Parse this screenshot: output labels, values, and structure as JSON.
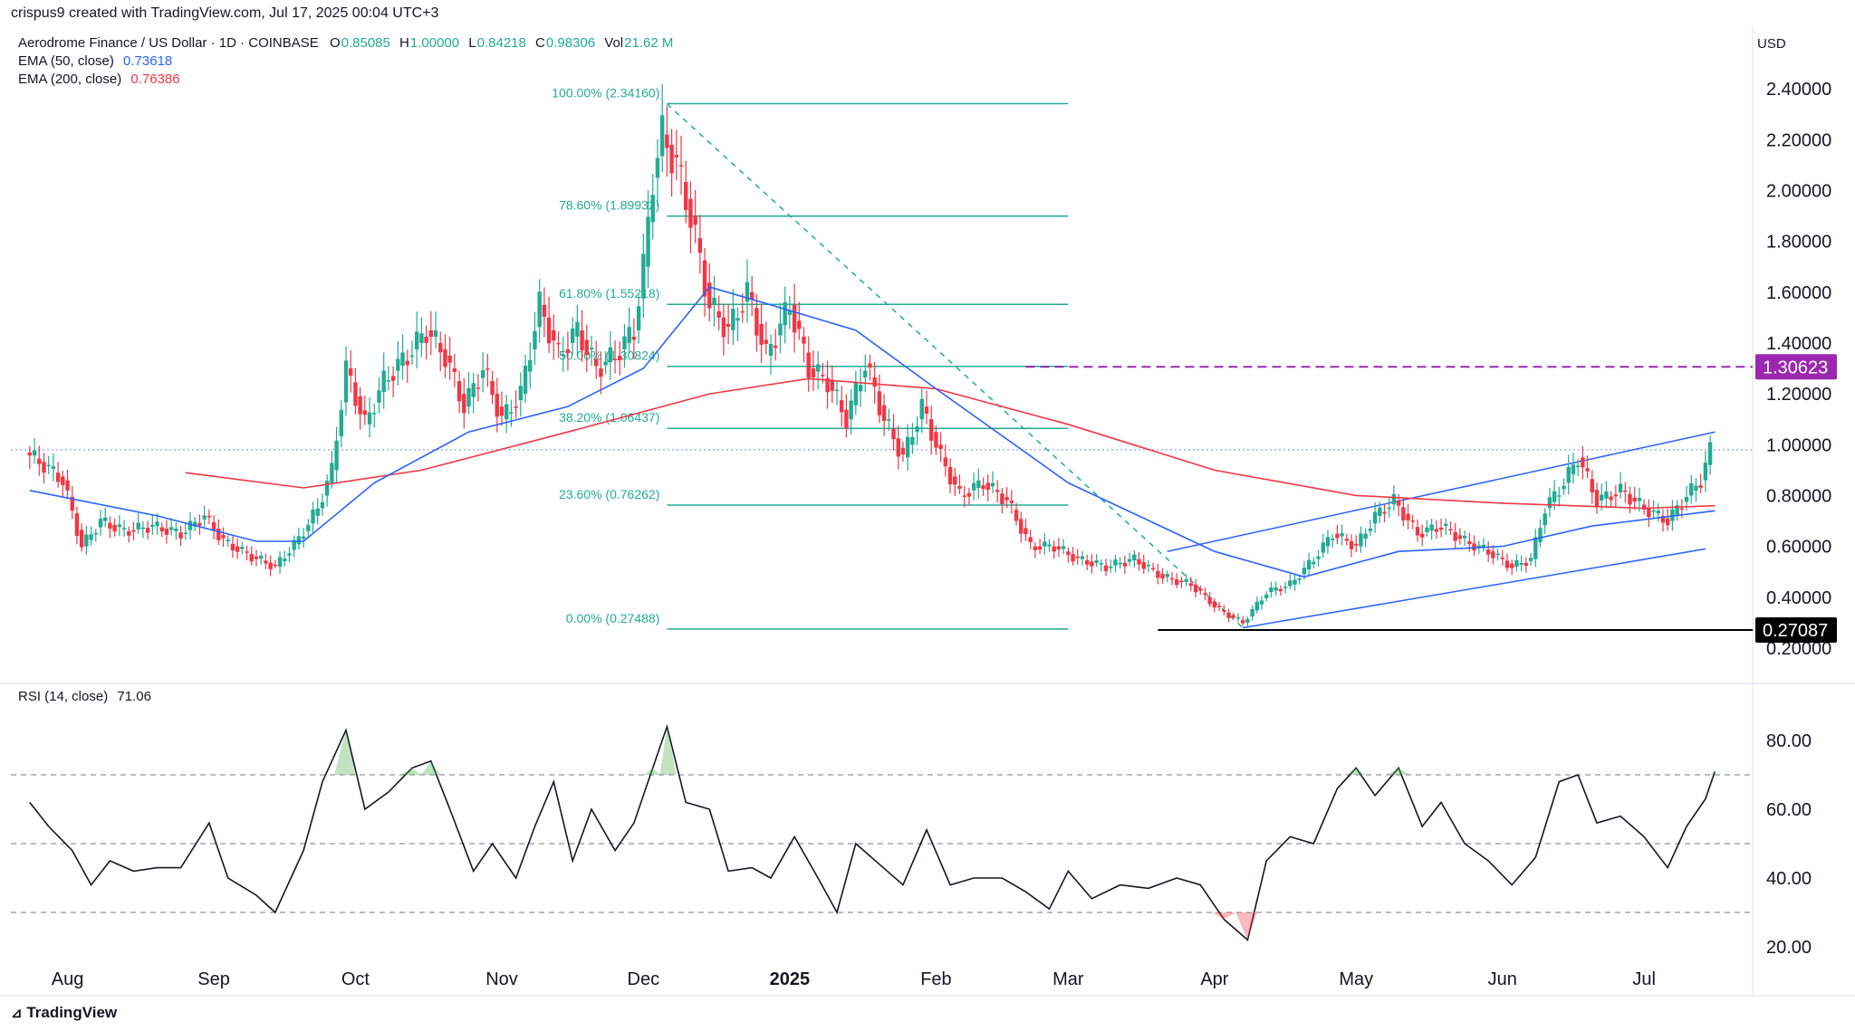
{
  "header": {
    "credit": "crispus9 created with TradingView.com, Jul 17, 2025 00:04 UTC+3",
    "currency": "USD",
    "footer_logo": "TradingView"
  },
  "legend": {
    "symbol": "Aerodrome Finance / US Dollar · 1D · COINBASE",
    "ohlc": [
      {
        "k": "O",
        "v": "0.85085"
      },
      {
        "k": "H",
        "v": "1.00000"
      },
      {
        "k": "L",
        "v": "0.84218"
      },
      {
        "k": "C",
        "v": "0.98306"
      },
      {
        "k": "Vol",
        "v": "21.62 M"
      }
    ],
    "ema50_label": "EMA (50, close)",
    "ema50_value": "0.73618",
    "ema200_label": "EMA (200, close)",
    "ema200_value": "0.76386",
    "rsi_label": "RSI (14, close)",
    "rsi_value": "71.06"
  },
  "colors": {
    "up": "#22ab94",
    "down": "#f23645",
    "ema50": "#2962ff",
    "ema200": "#f23645",
    "fib": "#22ab94",
    "channel": "#2962ff",
    "level_purple": "#9c27b0",
    "rsi_line": "#131722"
  },
  "chart_data": [
    {
      "type": "candlestick",
      "title": "Aerodrome Finance / US Dollar · 1D · COINBASE",
      "ylim": [
        0.15,
        2.5
      ],
      "y_ticks": [
        "2.40000",
        "2.20000",
        "2.00000",
        "1.80000",
        "1.60000",
        "1.40000",
        "1.20000",
        "1.00000",
        "0.80000",
        "0.60000",
        "0.40000",
        "0.20000"
      ],
      "x_ticks": [
        "Aug",
        "Sep",
        "Oct",
        "Nov",
        "Dec",
        "2025",
        "Feb",
        "Mar",
        "Apr",
        "May",
        "Jun",
        "Jul"
      ],
      "close_path": [
        [
          "2024-07-24",
          0.97
        ],
        [
          "2024-07-28",
          0.92
        ],
        [
          "2024-08-01",
          0.86
        ],
        [
          "2024-08-05",
          0.6
        ],
        [
          "2024-08-09",
          0.7
        ],
        [
          "2024-08-14",
          0.66
        ],
        [
          "2024-08-20",
          0.68
        ],
        [
          "2024-08-26",
          0.65
        ],
        [
          "2024-08-31",
          0.72
        ],
        [
          "2024-09-04",
          0.62
        ],
        [
          "2024-09-10",
          0.56
        ],
        [
          "2024-09-15",
          0.52
        ],
        [
          "2024-09-20",
          0.63
        ],
        [
          "2024-09-24",
          0.75
        ],
        [
          "2024-09-27",
          0.9
        ],
        [
          "2024-09-30",
          1.3
        ],
        [
          "2024-10-04",
          1.08
        ],
        [
          "2024-10-08",
          1.25
        ],
        [
          "2024-10-13",
          1.35
        ],
        [
          "2024-10-17",
          1.45
        ],
        [
          "2024-10-21",
          1.35
        ],
        [
          "2024-10-25",
          1.15
        ],
        [
          "2024-10-29",
          1.3
        ],
        [
          "2024-11-02",
          1.1
        ],
        [
          "2024-11-06",
          1.2
        ],
        [
          "2024-11-10",
          1.55
        ],
        [
          "2024-11-14",
          1.35
        ],
        [
          "2024-11-18",
          1.45
        ],
        [
          "2024-11-22",
          1.3
        ],
        [
          "2024-11-26",
          1.35
        ],
        [
          "2024-11-30",
          1.45
        ],
        [
          "2024-12-02",
          1.7
        ],
        [
          "2024-12-04",
          2.05
        ],
        [
          "2024-12-06",
          2.22
        ],
        [
          "2024-12-09",
          2.1
        ],
        [
          "2024-12-12",
          1.9
        ],
        [
          "2024-12-16",
          1.55
        ],
        [
          "2024-12-20",
          1.45
        ],
        [
          "2024-12-24",
          1.6
        ],
        [
          "2024-12-28",
          1.35
        ],
        [
          "2025-01-02",
          1.55
        ],
        [
          "2025-01-06",
          1.3
        ],
        [
          "2025-01-10",
          1.25
        ],
        [
          "2025-01-14",
          1.1
        ],
        [
          "2025-01-18",
          1.32
        ],
        [
          "2025-01-22",
          1.1
        ],
        [
          "2025-01-26",
          0.95
        ],
        [
          "2025-01-30",
          1.15
        ],
        [
          "2025-02-03",
          0.95
        ],
        [
          "2025-02-07",
          0.8
        ],
        [
          "2025-02-12",
          0.85
        ],
        [
          "2025-02-17",
          0.78
        ],
        [
          "2025-02-22",
          0.6
        ],
        [
          "2025-02-27",
          0.6
        ],
        [
          "2025-03-04",
          0.55
        ],
        [
          "2025-03-10",
          0.52
        ],
        [
          "2025-03-16",
          0.55
        ],
        [
          "2025-03-22",
          0.48
        ],
        [
          "2025-03-28",
          0.45
        ],
        [
          "2025-04-03",
          0.35
        ],
        [
          "2025-04-08",
          0.3
        ],
        [
          "2025-04-13",
          0.42
        ],
        [
          "2025-04-18",
          0.45
        ],
        [
          "2025-04-23",
          0.55
        ],
        [
          "2025-04-27",
          0.65
        ],
        [
          "2025-05-02",
          0.6
        ],
        [
          "2025-05-06",
          0.72
        ],
        [
          "2025-05-10",
          0.78
        ],
        [
          "2025-05-15",
          0.65
        ],
        [
          "2025-05-20",
          0.68
        ],
        [
          "2025-05-25",
          0.62
        ],
        [
          "2025-05-30",
          0.58
        ],
        [
          "2025-06-04",
          0.52
        ],
        [
          "2025-06-08",
          0.55
        ],
        [
          "2025-06-11",
          0.75
        ],
        [
          "2025-06-15",
          0.85
        ],
        [
          "2025-06-18",
          0.95
        ],
        [
          "2025-06-22",
          0.78
        ],
        [
          "2025-06-27",
          0.82
        ],
        [
          "2025-07-02",
          0.75
        ],
        [
          "2025-07-07",
          0.7
        ],
        [
          "2025-07-11",
          0.8
        ],
        [
          "2025-07-14",
          0.86
        ],
        [
          "2025-07-16",
          0.98
        ]
      ],
      "ema50_path": [
        [
          "2024-07-24",
          0.82
        ],
        [
          "2024-08-20",
          0.72
        ],
        [
          "2024-09-10",
          0.62
        ],
        [
          "2024-09-20",
          0.62
        ],
        [
          "2024-10-05",
          0.85
        ],
        [
          "2024-10-25",
          1.05
        ],
        [
          "2024-11-15",
          1.15
        ],
        [
          "2024-12-01",
          1.3
        ],
        [
          "2024-12-15",
          1.62
        ],
        [
          "2024-12-28",
          1.55
        ],
        [
          "2025-01-15",
          1.45
        ],
        [
          "2025-02-01",
          1.22
        ],
        [
          "2025-03-01",
          0.85
        ],
        [
          "2025-04-01",
          0.58
        ],
        [
          "2025-04-20",
          0.48
        ],
        [
          "2025-05-10",
          0.58
        ],
        [
          "2025-06-01",
          0.6
        ],
        [
          "2025-06-20",
          0.68
        ],
        [
          "2025-07-16",
          0.74
        ]
      ],
      "ema200_path": [
        [
          "2024-08-26",
          0.89
        ],
        [
          "2024-09-20",
          0.83
        ],
        [
          "2024-10-15",
          0.9
        ],
        [
          "2024-11-15",
          1.05
        ],
        [
          "2024-12-15",
          1.2
        ],
        [
          "2025-01-05",
          1.26
        ],
        [
          "2025-02-01",
          1.22
        ],
        [
          "2025-03-01",
          1.08
        ],
        [
          "2025-04-01",
          0.9
        ],
        [
          "2025-05-01",
          0.8
        ],
        [
          "2025-06-01",
          0.77
        ],
        [
          "2025-07-01",
          0.75
        ],
        [
          "2025-07-16",
          0.76
        ]
      ],
      "fibonacci": [
        {
          "label": "100.00% (2.34160)",
          "value": 2.3416
        },
        {
          "label": "78.60% (1.89932)",
          "value": 1.89932
        },
        {
          "label": "61.80% (1.55218)",
          "value": 1.5522
        },
        {
          "label": "50.00% (1.30824)",
          "value": 1.30824
        },
        {
          "label": "38.20% (1.06437)",
          "value": 1.06437
        },
        {
          "label": "23.60% (0.76262)",
          "value": 0.76262
        },
        {
          "label": "0.00% (0.27488)",
          "value": 0.27488
        }
      ],
      "fib_range": {
        "from": "2024-12-06",
        "to": "2025-03-01"
      },
      "horizontal_levels": [
        {
          "label": "1.30623",
          "value": 1.30623,
          "style": "dashed",
          "color": "#9c27b0",
          "from": "2025-02-20"
        },
        {
          "label": "0.27087",
          "value": 0.27087,
          "style": "solid",
          "color": "#000000",
          "from": "2025-03-20"
        }
      ],
      "channel": {
        "upper": [
          [
            "2025-03-22",
            0.58
          ],
          [
            "2025-07-16",
            1.05
          ]
        ],
        "lower": [
          [
            "2025-04-07",
            0.28
          ],
          [
            "2025-07-14",
            0.59
          ]
        ]
      },
      "diagonal": [
        [
          "2024-12-06",
          2.34
        ],
        [
          "2025-04-07",
          0.28
        ]
      ],
      "last_price_line": 0.98
    },
    {
      "type": "line",
      "title": "RSI (14, close)",
      "ylim": [
        15,
        90
      ],
      "y_ticks": [
        "80.00",
        "60.00",
        "40.00",
        "20.00"
      ],
      "bands": [
        70,
        50,
        30
      ],
      "values": [
        [
          "2024-07-24",
          62
        ],
        [
          "2024-07-28",
          55
        ],
        [
          "2024-08-02",
          48
        ],
        [
          "2024-08-06",
          38
        ],
        [
          "2024-08-10",
          45
        ],
        [
          "2024-08-15",
          42
        ],
        [
          "2024-08-20",
          43
        ],
        [
          "2024-08-25",
          43
        ],
        [
          "2024-08-31",
          56
        ],
        [
          "2024-09-04",
          40
        ],
        [
          "2024-09-10",
          35
        ],
        [
          "2024-09-14",
          30
        ],
        [
          "2024-09-20",
          48
        ],
        [
          "2024-09-24",
          68
        ],
        [
          "2024-09-29",
          83
        ],
        [
          "2024-10-03",
          60
        ],
        [
          "2024-10-08",
          65
        ],
        [
          "2024-10-13",
          72
        ],
        [
          "2024-10-17",
          74
        ],
        [
          "2024-10-21",
          60
        ],
        [
          "2024-10-26",
          42
        ],
        [
          "2024-10-30",
          50
        ],
        [
          "2024-11-04",
          40
        ],
        [
          "2024-11-08",
          55
        ],
        [
          "2024-11-12",
          68
        ],
        [
          "2024-11-16",
          45
        ],
        [
          "2024-11-20",
          60
        ],
        [
          "2024-11-25",
          48
        ],
        [
          "2024-11-29",
          56
        ],
        [
          "2024-12-03",
          72
        ],
        [
          "2024-12-06",
          84
        ],
        [
          "2024-12-10",
          62
        ],
        [
          "2024-12-15",
          60
        ],
        [
          "2024-12-19",
          42
        ],
        [
          "2024-12-24",
          43
        ],
        [
          "2024-12-28",
          40
        ],
        [
          "2025-01-02",
          52
        ],
        [
          "2025-01-07",
          40
        ],
        [
          "2025-01-11",
          30
        ],
        [
          "2025-01-15",
          50
        ],
        [
          "2025-01-20",
          44
        ],
        [
          "2025-01-25",
          38
        ],
        [
          "2025-01-30",
          54
        ],
        [
          "2025-02-04",
          38
        ],
        [
          "2025-02-09",
          40
        ],
        [
          "2025-02-15",
          40
        ],
        [
          "2025-02-20",
          36
        ],
        [
          "2025-02-25",
          31
        ],
        [
          "2025-03-01",
          42
        ],
        [
          "2025-03-06",
          34
        ],
        [
          "2025-03-12",
          38
        ],
        [
          "2025-03-18",
          37
        ],
        [
          "2025-03-24",
          40
        ],
        [
          "2025-03-29",
          38
        ],
        [
          "2025-04-03",
          28
        ],
        [
          "2025-04-08",
          22
        ],
        [
          "2025-04-12",
          45
        ],
        [
          "2025-04-17",
          52
        ],
        [
          "2025-04-22",
          50
        ],
        [
          "2025-04-27",
          66
        ],
        [
          "2025-05-01",
          72
        ],
        [
          "2025-05-05",
          64
        ],
        [
          "2025-05-10",
          72
        ],
        [
          "2025-05-15",
          55
        ],
        [
          "2025-05-19",
          62
        ],
        [
          "2025-05-24",
          50
        ],
        [
          "2025-05-29",
          45
        ],
        [
          "2025-06-03",
          38
        ],
        [
          "2025-06-08",
          46
        ],
        [
          "2025-06-13",
          68
        ],
        [
          "2025-06-17",
          70
        ],
        [
          "2025-06-21",
          56
        ],
        [
          "2025-06-26",
          58
        ],
        [
          "2025-07-01",
          52
        ],
        [
          "2025-07-06",
          43
        ],
        [
          "2025-07-10",
          55
        ],
        [
          "2025-07-14",
          63
        ],
        [
          "2025-07-16",
          71
        ]
      ]
    }
  ]
}
